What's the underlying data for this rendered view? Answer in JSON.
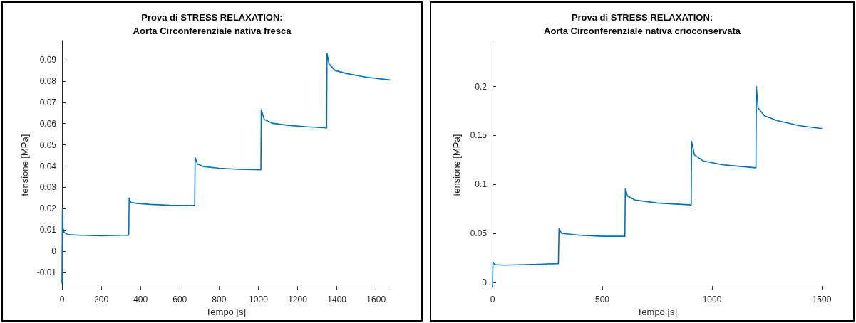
{
  "chart_data": [
    {
      "type": "line",
      "title": "Prova di STRESS RELAXATION:\nAorta Circonferenziale nativa fresca",
      "xlabel": "Tempo [s]",
      "ylabel": "tensione [MPa]",
      "xlim": [
        0,
        1670
      ],
      "xticks": [
        0,
        200,
        400,
        600,
        800,
        1000,
        1200,
        1400,
        1600
      ],
      "ylim": [
        -0.018,
        0.099
      ],
      "yticks": [
        -0.01,
        0,
        0.01,
        0.02,
        0.03,
        0.04,
        0.05,
        0.06,
        0.07,
        0.08,
        0.09
      ],
      "grid": false,
      "marker": "none",
      "series": [
        {
          "color": "#0072bd",
          "x": [
            0,
            2,
            5,
            10,
            30,
            100,
            200,
            300,
            340,
            342,
            350,
            380,
            450,
            550,
            676,
            678,
            690,
            720,
            800,
            900,
            1013,
            1015,
            1030,
            1070,
            1150,
            1250,
            1348,
            1350,
            1360,
            1390,
            1450,
            1550,
            1670
          ],
          "values": [
            -0.015,
            0.02,
            0.011,
            0.009,
            0.0078,
            0.0075,
            0.0073,
            0.0075,
            0.0075,
            0.025,
            0.023,
            0.0225,
            0.022,
            0.0216,
            0.0215,
            0.044,
            0.041,
            0.0398,
            0.039,
            0.0385,
            0.0383,
            0.0665,
            0.062,
            0.0602,
            0.0592,
            0.0585,
            0.058,
            0.093,
            0.088,
            0.085,
            0.0835,
            0.0818,
            0.0805
          ]
        }
      ]
    },
    {
      "type": "line",
      "title": "Prova di STRESS RELAXATION:\nAorta Circonferenziale nativa crioconservata",
      "xlabel": "Tempo [s]",
      "ylabel": "tensione [MPa]",
      "xlim": [
        0,
        1500
      ],
      "xticks": [
        0,
        500,
        1000,
        1500
      ],
      "ylim": [
        -0.0075,
        0.247
      ],
      "yticks": [
        0,
        0.05,
        0.1,
        0.15,
        0.2
      ],
      "grid": false,
      "marker": "none",
      "series": [
        {
          "color": "#0072bd",
          "x": [
            0,
            2,
            10,
            50,
            150,
            300,
            303,
            315,
            400,
            500,
            603,
            605,
            615,
            650,
            750,
            905,
            907,
            920,
            960,
            1050,
            1200,
            1202,
            1210,
            1240,
            1300,
            1400,
            1500
          ],
          "values": [
            -0.005,
            0.021,
            0.018,
            0.0175,
            0.018,
            0.019,
            0.055,
            0.05,
            0.048,
            0.047,
            0.047,
            0.096,
            0.088,
            0.084,
            0.081,
            0.079,
            0.144,
            0.13,
            0.124,
            0.12,
            0.117,
            0.2,
            0.178,
            0.17,
            0.165,
            0.16,
            0.157
          ]
        }
      ]
    }
  ]
}
